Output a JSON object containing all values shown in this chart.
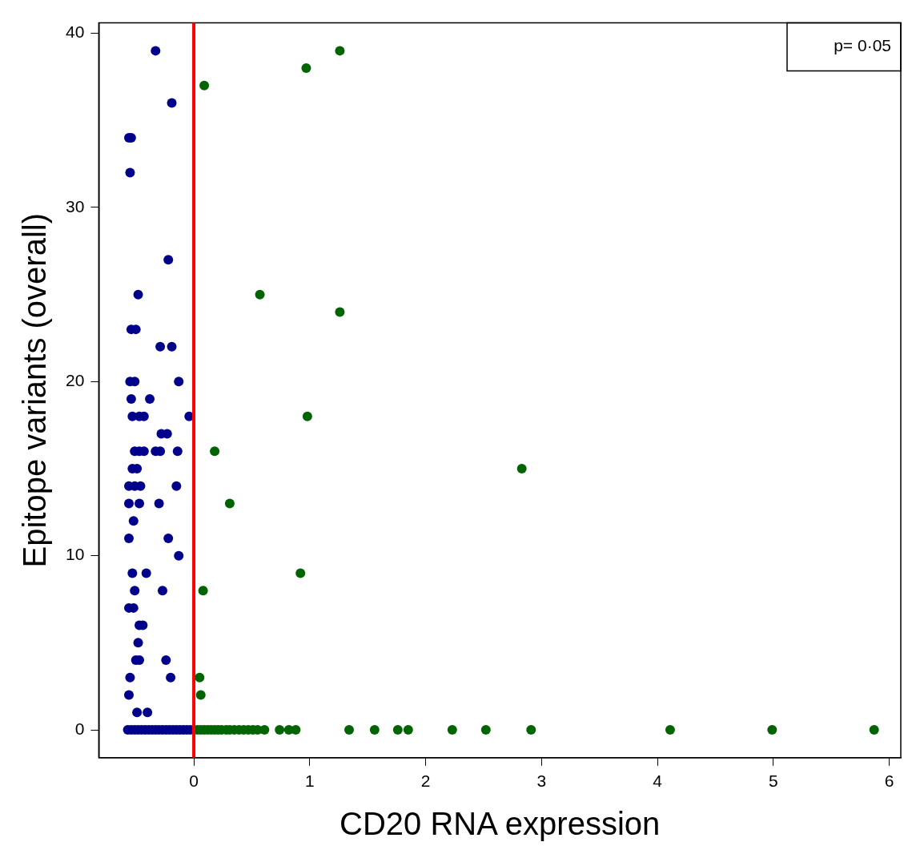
{
  "chart_data": {
    "type": "scatter",
    "xlabel": "CD20 RNA expression",
    "ylabel": "Epitope variants (overall)",
    "annotations": [
      "p= 0·05"
    ],
    "xlim": [
      -0.82,
      6.1
    ],
    "xticks": [
      0,
      1,
      2,
      3,
      4,
      5,
      6
    ],
    "ylim": [
      -1.6,
      40.6
    ],
    "yticks": [
      0,
      10,
      20,
      30,
      40
    ],
    "grid": false,
    "marker": "circle",
    "ref_lines": [
      {
        "axis": "x",
        "value": 0,
        "color": "#ff0000"
      }
    ],
    "series": [
      {
        "color": "#00008b",
        "x": [
          -0.33,
          -0.19,
          -0.56,
          -0.54,
          -0.55,
          -0.22,
          -0.48,
          -0.54,
          -0.5,
          -0.29,
          -0.19,
          -0.55,
          -0.51,
          -0.13,
          -0.38,
          -0.54,
          -0.53,
          -0.47,
          -0.43,
          -0.04,
          -0.28,
          -0.23,
          -0.51,
          -0.47,
          -0.43,
          -0.33,
          -0.29,
          -0.14,
          -0.53,
          -0.49,
          -0.56,
          -0.51,
          -0.46,
          -0.15,
          -0.56,
          -0.47,
          -0.3,
          -0.52,
          -0.56,
          -0.22,
          -0.13,
          -0.53,
          -0.41,
          -0.51,
          -0.27,
          -0.56,
          -0.52,
          -0.47,
          -0.44,
          -0.48,
          -0.5,
          -0.47,
          -0.24,
          -0.55,
          -0.2,
          -0.56,
          -0.49,
          -0.4,
          -0.57,
          -0.54,
          -0.51,
          -0.48,
          -0.45,
          -0.42,
          -0.39,
          -0.36,
          -0.33,
          -0.3,
          -0.27,
          -0.24,
          -0.21,
          -0.18,
          -0.15,
          -0.12,
          -0.09,
          -0.06,
          -0.03
        ],
        "values": [
          39,
          36,
          34,
          34,
          32,
          27,
          25,
          23,
          23,
          22,
          22,
          20,
          20,
          20,
          19,
          19,
          18,
          18,
          18,
          18,
          17,
          17,
          16,
          16,
          16,
          16,
          16,
          16,
          15,
          15,
          14,
          14,
          14,
          14,
          13,
          13,
          13,
          12,
          11,
          11,
          10,
          9,
          9,
          8,
          8,
          7,
          7,
          6,
          6,
          5,
          4,
          4,
          4,
          3,
          3,
          2,
          1,
          1,
          0,
          0,
          0,
          0,
          0,
          0,
          0,
          0,
          0,
          0,
          0,
          0,
          0,
          0,
          0,
          0,
          0,
          0,
          0
        ]
      },
      {
        "color": "#006400",
        "x": [
          1.26,
          0.97,
          0.09,
          0.57,
          1.26,
          0.98,
          0.18,
          2.83,
          0.31,
          0.92,
          0.08,
          0.05,
          0.06,
          0.03,
          0.06,
          0.09,
          0.12,
          0.15,
          0.18,
          0.21,
          0.24,
          0.28,
          0.31,
          0.35,
          0.39,
          0.43,
          0.47,
          0.51,
          0.55,
          0.61,
          0.74,
          0.82,
          0.88,
          1.34,
          1.56,
          1.76,
          1.85,
          2.23,
          2.52,
          2.91,
          4.11,
          4.99,
          5.87
        ],
        "values": [
          39,
          38,
          37,
          25,
          24,
          18,
          16,
          15,
          13,
          9,
          8,
          3,
          2,
          0,
          0,
          0,
          0,
          0,
          0,
          0,
          0,
          0,
          0,
          0,
          0,
          0,
          0,
          0,
          0,
          0,
          0,
          0,
          0,
          0,
          0,
          0,
          0,
          0,
          0,
          0,
          0,
          0,
          0
        ]
      }
    ]
  }
}
